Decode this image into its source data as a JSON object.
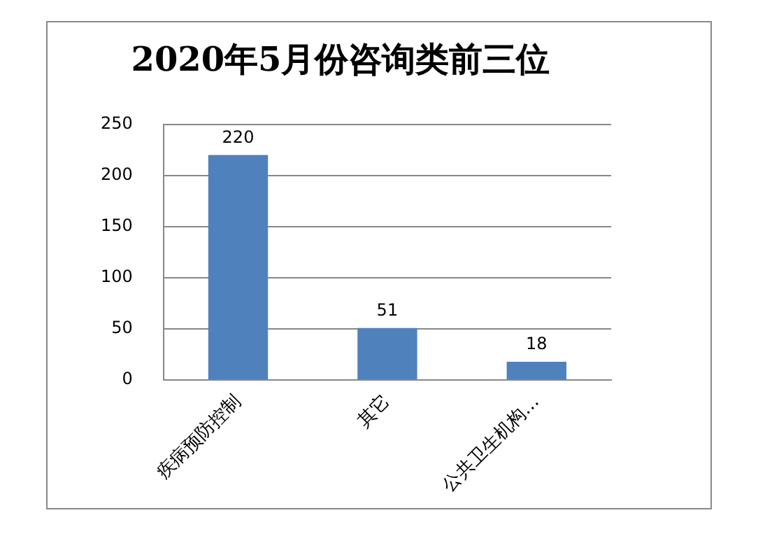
{
  "chart_data": {
    "type": "bar",
    "title": "2020年5月份咨询类前三位",
    "categories": [
      "疾病预防控制",
      "其它",
      "公共卫生机构…"
    ],
    "values": [
      220,
      51,
      18
    ],
    "color": "#4f81bd",
    "ylim": [
      0,
      250
    ],
    "yticks": [
      0,
      50,
      100,
      150,
      200,
      250
    ],
    "grid": "y",
    "data_labels": true,
    "legend": false
  }
}
